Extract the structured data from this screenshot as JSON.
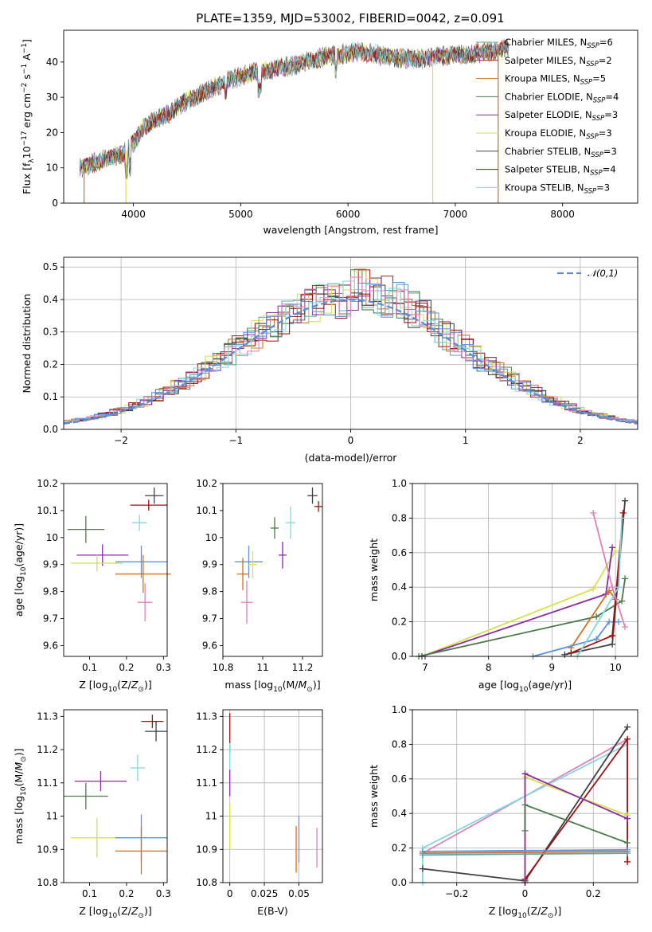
{
  "figure_title": "PLATE=1359, MJD=53002, FIBERID=0042, z=0.091",
  "colors": [
    "#5aa6b0",
    "#a0201a",
    "#d2701c",
    "#4a7a4a",
    "#8a2aa8",
    "#d8e04a",
    "#404040",
    "#a01010",
    "#82d8e0"
  ],
  "chart_data": [
    {
      "id": "spectrum",
      "type": "line",
      "xlabel": "wavelength [Angstrom, rest frame]",
      "ylabel": "Flux [f_λ10^{-17} erg cm^{-2} s^{-1} A^{-1}]",
      "ylabel_parts": [
        "Flux [f",
        "λ",
        "10",
        "−17",
        " erg cm",
        "−2",
        " s",
        "−1",
        " A",
        "−1",
        "]"
      ],
      "xlim": [
        3350,
        8700
      ],
      "ylim": [
        0,
        49
      ],
      "xticks": [
        4000,
        5000,
        6000,
        7000,
        8000
      ],
      "yticks": [
        0,
        10,
        20,
        30,
        40
      ],
      "grid": false,
      "legend_position": "upper-right",
      "series": [
        {
          "name": "Chabrier MILES",
          "nssp": "6",
          "color": "#5aa6b0"
        },
        {
          "name": "Salpeter MILES",
          "nssp": "2",
          "color": "#a0201a"
        },
        {
          "name": "Kroupa MILES",
          "nssp": "5",
          "color": "#d2701c"
        },
        {
          "name": "Chabrier ELODIE",
          "nssp": "4",
          "color": "#4a7a4a"
        },
        {
          "name": "Salpeter ELODIE",
          "nssp": "3",
          "color": "#8a2aa8"
        },
        {
          "name": "Kroupa ELODIE",
          "nssp": "3",
          "color": "#d8e04a"
        },
        {
          "name": "Chabrier STELIB",
          "nssp": "3",
          "color": "#404040"
        },
        {
          "name": "Salpeter STELIB",
          "nssp": "4",
          "color": "#a01010"
        },
        {
          "name": "Kroupa STELIB",
          "nssp": "3",
          "color": "#82d8e0"
        }
      ],
      "continuum": {
        "x": [
          3500,
          3700,
          3900,
          4000,
          4100,
          4300,
          4500,
          4700,
          4900,
          5100,
          5300,
          5500,
          5700,
          5900,
          6100,
          6300,
          6500,
          6700,
          6900,
          7100,
          7300,
          7500
        ],
        "y": [
          10,
          12,
          14,
          17,
          22,
          25,
          29,
          32,
          35,
          37,
          38,
          39,
          41,
          42,
          43,
          42,
          41,
          41,
          42,
          42,
          43,
          44
        ]
      },
      "drops": [
        {
          "x": 3540,
          "to": 0,
          "color": "#d2701c"
        },
        {
          "x": 3930,
          "to": 0,
          "color": "#d8e04a"
        },
        {
          "x": 6790,
          "to": 0,
          "color": "#d8e04a"
        },
        {
          "x": 7400,
          "to": 0,
          "color": "#d2701c"
        }
      ]
    },
    {
      "id": "residuals",
      "type": "bar",
      "xlabel": "(data-model)/error",
      "ylabel": "Normed distribution",
      "xlim": [
        -2.5,
        2.5
      ],
      "ylim": [
        0,
        0.53
      ],
      "xticks": [
        -2,
        -1,
        0,
        1,
        2
      ],
      "yticks": [
        0.0,
        0.1,
        0.2,
        0.3,
        0.4,
        0.5
      ],
      "grid": true,
      "legend_position": "upper-right",
      "legend_label": "𝒩(0,1)",
      "gaussian_color": "#5a8ad8",
      "hist_colors": [
        "#5aa6b0",
        "#a0201a",
        "#d2701c",
        "#4a7a4a",
        "#8a2aa8",
        "#d8e04a",
        "#404040",
        "#a01010",
        "#82d8e0",
        "#e080b8",
        "#6090e0"
      ]
    },
    {
      "id": "age_vs_Z",
      "type": "scatter",
      "xlabel": "Z [log10(Z/Z⊙)]",
      "ylabel": "age [log10(age/yr)]",
      "xlim": [
        0.03,
        0.31
      ],
      "ylim": [
        9.56,
        10.2
      ],
      "xticks": [
        0.1,
        0.2,
        0.3
      ],
      "yticks": [
        9.6,
        9.7,
        9.8,
        9.9,
        10.0,
        10.1,
        10.2
      ],
      "grid": false,
      "points": [
        {
          "x": 0.09,
          "y": 10.03,
          "xerr": 0.05,
          "yerr": 0.05,
          "color": "#4a7a4a"
        },
        {
          "x": 0.275,
          "y": 10.155,
          "xerr": 0.025,
          "yerr": 0.03,
          "color": "#404040"
        },
        {
          "x": 0.26,
          "y": 10.12,
          "xerr": 0.05,
          "yerr": 0.02,
          "color": "#a01010"
        },
        {
          "x": 0.235,
          "y": 10.055,
          "xerr": 0.02,
          "yerr": 0.03,
          "color": "#82d8e0"
        },
        {
          "x": 0.135,
          "y": 9.935,
          "xerr": 0.07,
          "yerr": 0.04,
          "color": "#8a2aa8"
        },
        {
          "x": 0.12,
          "y": 9.905,
          "xerr": 0.07,
          "yerr": 0.03,
          "color": "#d8e04a"
        },
        {
          "x": 0.24,
          "y": 9.91,
          "xerr": 0.07,
          "yerr": 0.06,
          "color": "#6090e0"
        },
        {
          "x": 0.245,
          "y": 9.865,
          "xerr": 0.075,
          "yerr": 0.07,
          "color": "#d2701c"
        },
        {
          "x": 0.25,
          "y": 9.76,
          "xerr": 0.02,
          "yerr": 0.07,
          "color": "#e080b8"
        }
      ]
    },
    {
      "id": "age_vs_mass",
      "type": "scatter",
      "xlabel": "mass [log10(M/M⊙)]",
      "ylabel": "",
      "xlim": [
        10.8,
        11.3
      ],
      "ylim": [
        9.56,
        10.2
      ],
      "xticks": [
        10.8,
        11.0,
        11.2
      ],
      "yticks": [
        9.6,
        9.7,
        9.8,
        9.9,
        10.0,
        10.1,
        10.2
      ],
      "grid": false,
      "points": [
        {
          "x": 11.06,
          "y": 10.035,
          "xerr": 0.02,
          "yerr": 0.04,
          "color": "#4a7a4a"
        },
        {
          "x": 11.25,
          "y": 10.155,
          "xerr": 0.025,
          "yerr": 0.03,
          "color": "#404040"
        },
        {
          "x": 11.28,
          "y": 10.115,
          "xerr": 0.02,
          "yerr": 0.02,
          "color": "#a01010"
        },
        {
          "x": 11.14,
          "y": 10.055,
          "xerr": 0.025,
          "yerr": 0.06,
          "color": "#82d8e0"
        },
        {
          "x": 11.1,
          "y": 9.935,
          "xerr": 0.02,
          "yerr": 0.05,
          "color": "#8a2aa8"
        },
        {
          "x": 10.93,
          "y": 9.91,
          "xerr": 0.07,
          "yerr": 0.06,
          "color": "#6090e0"
        },
        {
          "x": 10.95,
          "y": 9.9,
          "xerr": 0.02,
          "yerr": 0.05,
          "color": "#d8e04a"
        },
        {
          "x": 10.9,
          "y": 9.865,
          "xerr": 0.03,
          "yerr": 0.06,
          "color": "#d2701c"
        },
        {
          "x": 10.92,
          "y": 9.76,
          "xerr": 0.03,
          "yerr": 0.08,
          "color": "#e080b8"
        }
      ]
    },
    {
      "id": "mass_weight_vs_age",
      "type": "line",
      "xlabel": "age [log10(age/yr)]",
      "ylabel": "mass weight",
      "xlim": [
        6.8,
        10.35
      ],
      "ylim": [
        0,
        1
      ],
      "xticks": [
        7,
        8,
        9,
        10
      ],
      "yticks": [
        0.0,
        0.2,
        0.4,
        0.6,
        0.8,
        1.0
      ],
      "grid": true,
      "series": [
        {
          "color": "#d8e04a",
          "x": [
            6.95,
            9.65,
            10.0
          ],
          "y": [
            0.0,
            0.39,
            0.61
          ]
        },
        {
          "color": "#8a2aa8",
          "x": [
            6.95,
            9.85,
            9.95
          ],
          "y": [
            0.0,
            0.36,
            0.63
          ]
        },
        {
          "color": "#4a7a4a",
          "x": [
            6.9,
            9.7,
            10.1,
            10.15
          ],
          "y": [
            0.0,
            0.23,
            0.32,
            0.45
          ]
        },
        {
          "color": "#d2701c",
          "x": [
            9.3,
            9.9,
            10.0
          ],
          "y": [
            0.05,
            0.38,
            0.33
          ]
        },
        {
          "color": "#6090e0",
          "x": [
            8.7,
            9.7,
            9.9,
            10.05
          ],
          "y": [
            0.0,
            0.1,
            0.2,
            0.2
          ]
        },
        {
          "color": "#404040",
          "x": [
            9.2,
            9.95,
            10.15
          ],
          "y": [
            0.01,
            0.07,
            0.9
          ]
        },
        {
          "color": "#a01010",
          "x": [
            9.3,
            9.95,
            10.12
          ],
          "y": [
            0.02,
            0.12,
            0.83
          ]
        },
        {
          "color": "#82d8e0",
          "x": [
            9.4,
            10.05,
            10.1
          ],
          "y": [
            0.0,
            0.4,
            0.8
          ]
        },
        {
          "color": "#e080b8",
          "x": [
            9.65,
            9.95,
            10.15
          ],
          "y": [
            0.83,
            0.4,
            0.17
          ]
        }
      ]
    },
    {
      "id": "mass_vs_Z",
      "type": "scatter",
      "xlabel": "Z [log10(Z/Z⊙)]",
      "ylabel": "mass [log10(M/M⊙)]",
      "xlim": [
        0.03,
        0.31
      ],
      "ylim": [
        10.8,
        11.32
      ],
      "xticks": [
        0.1,
        0.2,
        0.3
      ],
      "yticks": [
        10.8,
        10.9,
        11.0,
        11.1,
        11.2,
        11.3
      ],
      "grid": false,
      "points": [
        {
          "x": 0.27,
          "y": 11.285,
          "xerr": 0.03,
          "yerr": 0.02,
          "color": "#a01010"
        },
        {
          "x": 0.28,
          "y": 11.255,
          "xerr": 0.03,
          "yerr": 0.03,
          "color": "#404040"
        },
        {
          "x": 0.23,
          "y": 11.145,
          "xerr": 0.02,
          "yerr": 0.04,
          "color": "#82d8e0"
        },
        {
          "x": 0.13,
          "y": 11.105,
          "xerr": 0.07,
          "yerr": 0.03,
          "color": "#8a2aa8"
        },
        {
          "x": 0.09,
          "y": 11.06,
          "xerr": 0.06,
          "yerr": 0.04,
          "color": "#4a7a4a"
        },
        {
          "x": 0.12,
          "y": 10.935,
          "xerr": 0.07,
          "yerr": 0.06,
          "color": "#d8e04a"
        },
        {
          "x": 0.24,
          "y": 10.935,
          "xerr": 0.07,
          "yerr": 0.07,
          "color": "#6090e0"
        },
        {
          "x": 0.24,
          "y": 10.895,
          "xerr": 0.07,
          "yerr": 0.07,
          "color": "#d2701c"
        }
      ]
    },
    {
      "id": "mass_vs_ebv",
      "type": "scatter",
      "xlabel": "E(B-V)",
      "ylabel": "",
      "xlim": [
        -0.005,
        0.067
      ],
      "ylim": [
        10.8,
        11.32
      ],
      "xticks": [
        0.0,
        0.025,
        0.05
      ],
      "yticks": [
        10.8,
        10.9,
        11.0,
        11.1,
        11.2,
        11.3
      ],
      "grid": true,
      "points": [
        {
          "x": 0.0,
          "y": 11.25,
          "xerr": 0,
          "yerr": 0.06,
          "color": "#a01010"
        },
        {
          "x": 0.0,
          "y": 11.17,
          "xerr": 0,
          "yerr": 0.05,
          "color": "#82d8e0"
        },
        {
          "x": 0.0,
          "y": 11.1,
          "xerr": 0,
          "yerr": 0.04,
          "color": "#8a2aa8"
        },
        {
          "x": 0.0,
          "y": 10.97,
          "xerr": 0,
          "yerr": 0.07,
          "color": "#d8e04a"
        },
        {
          "x": 0.05,
          "y": 10.93,
          "xerr": 0,
          "yerr": 0.07,
          "color": "#6090e0"
        },
        {
          "x": 0.048,
          "y": 10.9,
          "xerr": 0,
          "yerr": 0.07,
          "color": "#d2701c"
        },
        {
          "x": 0.063,
          "y": 10.905,
          "xerr": 0,
          "yerr": 0.06,
          "color": "#e080b8"
        }
      ]
    },
    {
      "id": "mass_weight_vs_Z",
      "type": "line",
      "xlabel": "Z [log10(Z/Z⊙)]",
      "ylabel": "mass weight",
      "xlim": [
        -0.33,
        0.33
      ],
      "ylim": [
        0,
        1
      ],
      "xticks": [
        -0.2,
        0.0,
        0.2
      ],
      "yticks": [
        0.0,
        0.2,
        0.4,
        0.6,
        0.8,
        1.0
      ],
      "grid": true,
      "series": [
        {
          "color": "#e080b8",
          "x": [
            -0.3,
            0.3
          ],
          "y": [
            0.17,
            0.83
          ]
        },
        {
          "color": "#82d8e0",
          "x": [
            -0.3,
            -0.3,
            0.3
          ],
          "y": [
            0.0,
            0.2,
            0.8
          ]
        },
        {
          "color": "#404040",
          "x": [
            -0.3,
            0.0,
            0.3
          ],
          "y": [
            0.08,
            0.01,
            0.9
          ]
        },
        {
          "color": "#a01010",
          "x": [
            0.0,
            0.3,
            0.3
          ],
          "y": [
            0.02,
            0.83,
            0.12
          ]
        },
        {
          "color": "#d8e04a",
          "x": [
            0.0,
            0.0,
            0.3
          ],
          "y": [
            0.0,
            0.61,
            0.39
          ]
        },
        {
          "color": "#8a2aa8",
          "x": [
            0.0,
            0.0,
            0.3
          ],
          "y": [
            0.0,
            0.63,
            0.37
          ]
        },
        {
          "color": "#4a7a4a",
          "x": [
            0.0,
            0.0,
            0.3
          ],
          "y": [
            0.3,
            0.45,
            0.23
          ]
        },
        {
          "color": "#d2701c",
          "x": [
            -0.3,
            0.3
          ],
          "y": [
            0.17,
            0.18
          ]
        },
        {
          "color": "#6090e0",
          "x": [
            -0.3,
            0.3
          ],
          "y": [
            0.18,
            0.19
          ]
        },
        {
          "color": "#5aa6b0",
          "x": [
            -0.3,
            0.3
          ],
          "y": [
            0.16,
            0.17
          ]
        }
      ]
    }
  ]
}
